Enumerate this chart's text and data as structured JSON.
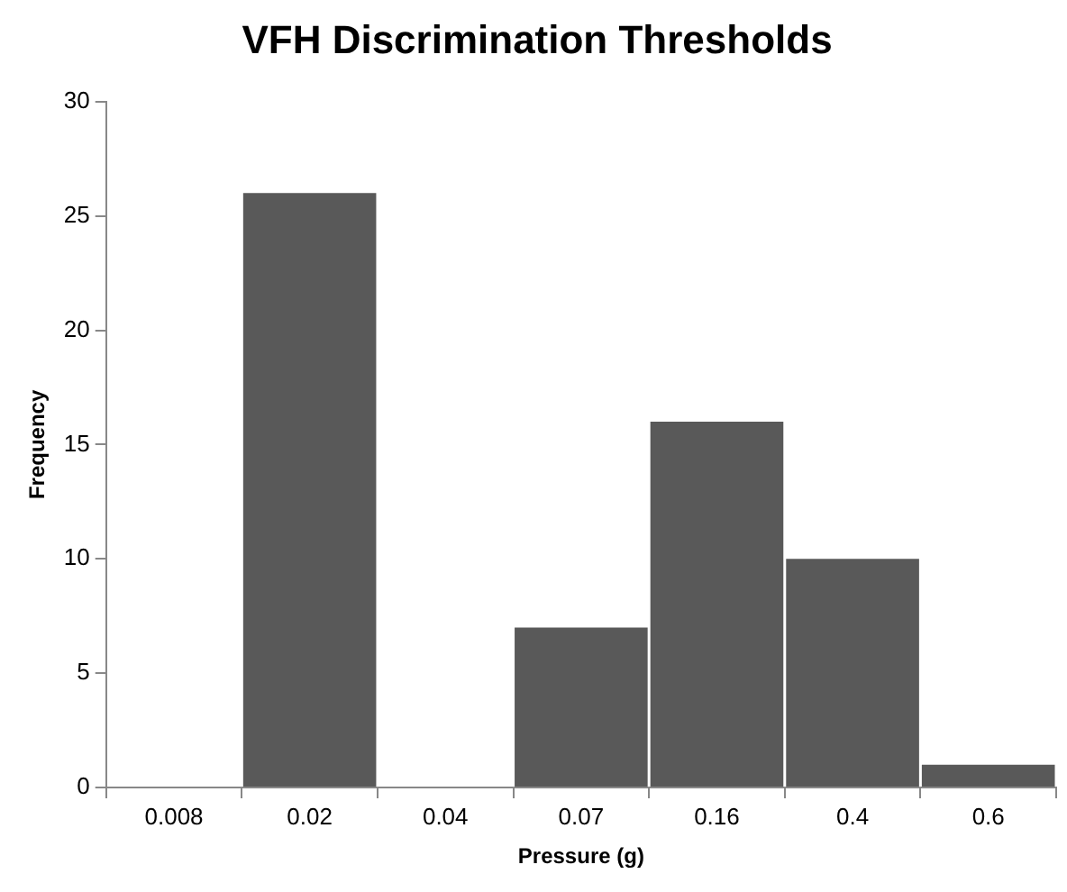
{
  "chart_data": {
    "type": "bar",
    "title": "VFH Discrimination Thresholds",
    "xlabel": "Pressure (g)",
    "ylabel": "Frequency",
    "categories": [
      "0.008",
      "0.02",
      "0.04",
      "0.07",
      "0.16",
      "0.4",
      "0.6"
    ],
    "values": [
      0,
      26,
      0,
      7,
      16,
      10,
      1
    ],
    "color": "#595959",
    "ylim": [
      0,
      30
    ],
    "yticks": [
      0,
      5,
      10,
      15,
      20,
      25,
      30
    ],
    "grid": false,
    "legend": false
  }
}
